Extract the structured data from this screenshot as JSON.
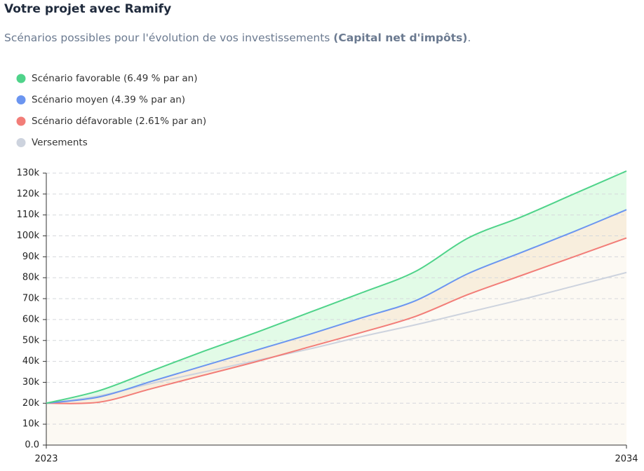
{
  "chart_data": {
    "type": "line",
    "title": "Votre projet avec Ramify",
    "subtitle": "Scénarios possibles pour l'évolution de vos investissements ",
    "subtitle_bold": "(Capital net d'impôts)",
    "subtitle_end": ".",
    "x": [
      2023,
      2024,
      2025,
      2026,
      2027,
      2028,
      2029,
      2030,
      2031,
      2032,
      2033,
      2034
    ],
    "xlim": [
      2023,
      2034
    ],
    "xticks": [
      2023,
      2034
    ],
    "ylim": [
      0,
      130000
    ],
    "yticks": [
      {
        "value": 0,
        "label": "0.0"
      },
      {
        "value": 10000,
        "label": "10k"
      },
      {
        "value": 20000,
        "label": "20k"
      },
      {
        "value": 30000,
        "label": "30k"
      },
      {
        "value": 40000,
        "label": "40k"
      },
      {
        "value": 50000,
        "label": "50k"
      },
      {
        "value": 60000,
        "label": "60k"
      },
      {
        "value": 70000,
        "label": "70k"
      },
      {
        "value": 80000,
        "label": "80k"
      },
      {
        "value": 90000,
        "label": "90k"
      },
      {
        "value": 100000,
        "label": "100k"
      },
      {
        "value": 110000,
        "label": "110k"
      },
      {
        "value": 120000,
        "label": "120k"
      },
      {
        "value": 130000,
        "label": "130k"
      }
    ],
    "grid": true,
    "series": [
      {
        "name": "Scénario favorable (6.49 % par an)",
        "color": "#4fd38a",
        "fill": "#e2fbe7",
        "values": [
          20000,
          26000,
          35500,
          45000,
          54000,
          63500,
          73000,
          83000,
          99000,
          109000,
          120000,
          131000
        ]
      },
      {
        "name": "Scénario moyen (4.39 % par an)",
        "color": "#6b95f0",
        "fill": "#f8eedd",
        "values": [
          20000,
          23000,
          30500,
          38000,
          45500,
          53000,
          61000,
          69000,
          82000,
          92000,
          102000,
          112500
        ]
      },
      {
        "name": "Scénario défavorable (2.61% par an)",
        "color": "#f27d78",
        "fill": "#fcf9f3",
        "values": [
          20000,
          20500,
          27000,
          33500,
          40000,
          47000,
          54000,
          61500,
          72000,
          81000,
          90000,
          99000
        ]
      },
      {
        "name": "Versements",
        "color": "#cdd3de",
        "values": [
          20000,
          23500,
          29500,
          35000,
          40500,
          46000,
          52000,
          57500,
          63500,
          69500,
          76000,
          82500
        ]
      }
    ]
  }
}
